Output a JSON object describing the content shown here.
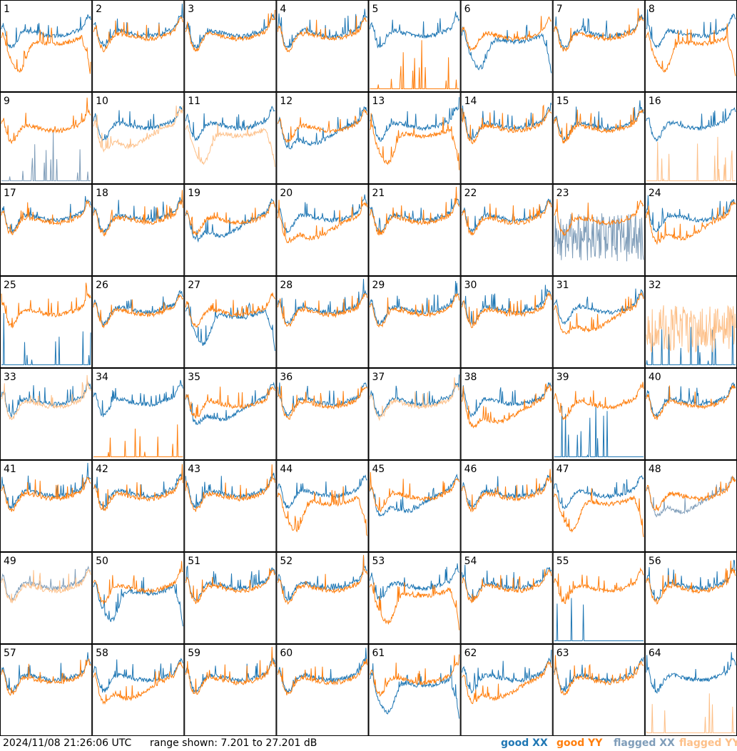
{
  "timestamp": "2024/11/08 21:26:06 UTC",
  "range_text": "range shown: 7.201 to 27.201 dB",
  "legend": {
    "good_xx": "good XX",
    "good_yy": "good YY",
    "flagged_xx": "flagged XX",
    "flagged_yy": "flagged YY"
  },
  "colors": {
    "good_xx": "#1f77b4",
    "good_yy": "#ff7f0e",
    "flagged_xx": "#7f9db9",
    "flagged_yy": "#fdc089"
  },
  "chart_data": {
    "type": "line",
    "grid": "8x8 small multiples",
    "ylim": [
      7.201,
      27.201
    ],
    "y_unit": "dB",
    "series_kinds": [
      "good XX",
      "good YY",
      "flagged XX",
      "flagged YY"
    ],
    "panels": [
      {
        "id": "1",
        "xx": "good",
        "yy": "good",
        "shape_xx": "normal",
        "shape_yy": "rolloff"
      },
      {
        "id": "2",
        "xx": "good",
        "yy": "good",
        "shape_xx": "normal",
        "shape_yy": "normal"
      },
      {
        "id": "3",
        "xx": "good",
        "yy": "good",
        "shape_xx": "normal",
        "shape_yy": "normal"
      },
      {
        "id": "4",
        "xx": "good",
        "yy": "good",
        "shape_xx": "normal",
        "shape_yy": "normal"
      },
      {
        "id": "5",
        "xx": "good",
        "yy": "good",
        "shape_xx": "normal",
        "shape_yy": "spikes"
      },
      {
        "id": "6",
        "xx": "good",
        "yy": "good",
        "shape_xx": "rolloff",
        "shape_yy": "normal"
      },
      {
        "id": "7",
        "xx": "good",
        "yy": "good",
        "shape_xx": "normal",
        "shape_yy": "normal"
      },
      {
        "id": "8",
        "xx": "good",
        "yy": "good",
        "shape_xx": "normal",
        "shape_yy": "rolloff"
      },
      {
        "id": "9",
        "xx": "flagged",
        "yy": "good",
        "shape_xx": "spikes",
        "shape_yy": "normal"
      },
      {
        "id": "10",
        "xx": "good",
        "yy": "flagged",
        "shape_xx": "normal",
        "shape_yy": "low"
      },
      {
        "id": "11",
        "xx": "good",
        "yy": "flagged",
        "shape_xx": "normal",
        "shape_yy": "rolloff"
      },
      {
        "id": "12",
        "xx": "good",
        "yy": "good",
        "shape_xx": "low",
        "shape_yy": "normal"
      },
      {
        "id": "13",
        "xx": "good",
        "yy": "good",
        "shape_xx": "normal",
        "shape_yy": "rolloff"
      },
      {
        "id": "14",
        "xx": "good",
        "yy": "good",
        "shape_xx": "normal",
        "shape_yy": "normal"
      },
      {
        "id": "15",
        "xx": "good",
        "yy": "good",
        "shape_xx": "normal",
        "shape_yy": "normal"
      },
      {
        "id": "16",
        "xx": "good",
        "yy": "flagged",
        "shape_xx": "normal",
        "shape_yy": "spikes"
      },
      {
        "id": "17",
        "xx": "good",
        "yy": "good",
        "shape_xx": "normal",
        "shape_yy": "normal"
      },
      {
        "id": "18",
        "xx": "good",
        "yy": "good",
        "shape_xx": "normal",
        "shape_yy": "normal"
      },
      {
        "id": "19",
        "xx": "good",
        "yy": "good",
        "shape_xx": "low",
        "shape_yy": "normal"
      },
      {
        "id": "20",
        "xx": "good",
        "yy": "good",
        "shape_xx": "normal",
        "shape_yy": "low"
      },
      {
        "id": "21",
        "xx": "good",
        "yy": "good",
        "shape_xx": "normal",
        "shape_yy": "normal"
      },
      {
        "id": "22",
        "xx": "good",
        "yy": "good",
        "shape_xx": "normal",
        "shape_yy": "normal"
      },
      {
        "id": "23",
        "xx": "flagged",
        "yy": "good",
        "shape_xx": "noise",
        "shape_yy": "normal"
      },
      {
        "id": "24",
        "xx": "good",
        "yy": "good",
        "shape_xx": "normal",
        "shape_yy": "low"
      },
      {
        "id": "25",
        "xx": "good",
        "yy": "good",
        "shape_xx": "spikes",
        "shape_yy": "normal"
      },
      {
        "id": "26",
        "xx": "good",
        "yy": "good",
        "shape_xx": "normal",
        "shape_yy": "normal"
      },
      {
        "id": "27",
        "xx": "good",
        "yy": "good",
        "shape_xx": "rolloff",
        "shape_yy": "normal"
      },
      {
        "id": "28",
        "xx": "good",
        "yy": "good",
        "shape_xx": "normal",
        "shape_yy": "normal"
      },
      {
        "id": "29",
        "xx": "good",
        "yy": "good",
        "shape_xx": "normal",
        "shape_yy": "normal"
      },
      {
        "id": "30",
        "xx": "good",
        "yy": "good",
        "shape_xx": "normal",
        "shape_yy": "normal"
      },
      {
        "id": "31",
        "xx": "good",
        "yy": "good",
        "shape_xx": "normal",
        "shape_yy": "low"
      },
      {
        "id": "32",
        "xx": "good",
        "yy": "flagged",
        "shape_xx": "spikes",
        "shape_yy": "noise"
      },
      {
        "id": "33",
        "xx": "good",
        "yy": "flagged",
        "shape_xx": "normal",
        "shape_yy": "normal"
      },
      {
        "id": "34",
        "xx": "good",
        "yy": "good",
        "shape_xx": "normal",
        "shape_yy": "spikes"
      },
      {
        "id": "35",
        "xx": "good",
        "yy": "good",
        "shape_xx": "low",
        "shape_yy": "normal"
      },
      {
        "id": "36",
        "xx": "good",
        "yy": "good",
        "shape_xx": "normal",
        "shape_yy": "normal"
      },
      {
        "id": "37",
        "xx": "good",
        "yy": "flagged",
        "shape_xx": "normal",
        "shape_yy": "normal"
      },
      {
        "id": "38",
        "xx": "good",
        "yy": "good",
        "shape_xx": "normal",
        "shape_yy": "low"
      },
      {
        "id": "39",
        "xx": "good",
        "yy": "good",
        "shape_xx": "spikes",
        "shape_yy": "normal"
      },
      {
        "id": "40",
        "xx": "good",
        "yy": "good",
        "shape_xx": "normal",
        "shape_yy": "normal"
      },
      {
        "id": "41",
        "xx": "good",
        "yy": "good",
        "shape_xx": "normal",
        "shape_yy": "normal"
      },
      {
        "id": "42",
        "xx": "good",
        "yy": "good",
        "shape_xx": "normal",
        "shape_yy": "normal"
      },
      {
        "id": "43",
        "xx": "good",
        "yy": "good",
        "shape_xx": "normal",
        "shape_yy": "normal"
      },
      {
        "id": "44",
        "xx": "good",
        "yy": "good",
        "shape_xx": "normal",
        "shape_yy": "rolloff"
      },
      {
        "id": "45",
        "xx": "good",
        "yy": "good",
        "shape_xx": "low",
        "shape_yy": "normal"
      },
      {
        "id": "46",
        "xx": "good",
        "yy": "good",
        "shape_xx": "normal",
        "shape_yy": "normal"
      },
      {
        "id": "47",
        "xx": "good",
        "yy": "good",
        "shape_xx": "normal",
        "shape_yy": "rolloff"
      },
      {
        "id": "48",
        "xx": "flagged",
        "yy": "good",
        "shape_xx": "low",
        "shape_yy": "normal"
      },
      {
        "id": "49",
        "xx": "flagged",
        "yy": "flagged",
        "shape_xx": "normal",
        "shape_yy": "normal"
      },
      {
        "id": "50",
        "xx": "good",
        "yy": "good",
        "shape_xx": "rolloff",
        "shape_yy": "normal"
      },
      {
        "id": "51",
        "xx": "good",
        "yy": "good",
        "shape_xx": "normal",
        "shape_yy": "normal"
      },
      {
        "id": "52",
        "xx": "good",
        "yy": "good",
        "shape_xx": "normal",
        "shape_yy": "normal"
      },
      {
        "id": "53",
        "xx": "good",
        "yy": "good",
        "shape_xx": "normal",
        "shape_yy": "rolloff"
      },
      {
        "id": "54",
        "xx": "good",
        "yy": "good",
        "shape_xx": "normal",
        "shape_yy": "normal"
      },
      {
        "id": "55",
        "xx": "good",
        "yy": "good",
        "shape_xx": "spikes",
        "shape_yy": "normal"
      },
      {
        "id": "56",
        "xx": "good",
        "yy": "good",
        "shape_xx": "normal",
        "shape_yy": "normal"
      },
      {
        "id": "57",
        "xx": "good",
        "yy": "good",
        "shape_xx": "normal",
        "shape_yy": "normal"
      },
      {
        "id": "58",
        "xx": "good",
        "yy": "good",
        "shape_xx": "normal",
        "shape_yy": "low"
      },
      {
        "id": "59",
        "xx": "good",
        "yy": "good",
        "shape_xx": "normal",
        "shape_yy": "normal"
      },
      {
        "id": "60",
        "xx": "good",
        "yy": "good",
        "shape_xx": "normal",
        "shape_yy": "normal"
      },
      {
        "id": "61",
        "xx": "good",
        "yy": "good",
        "shape_xx": "rolloff",
        "shape_yy": "normal"
      },
      {
        "id": "62",
        "xx": "good",
        "yy": "good",
        "shape_xx": "normal",
        "shape_yy": "low"
      },
      {
        "id": "63",
        "xx": "good",
        "yy": "good",
        "shape_xx": "normal",
        "shape_yy": "normal"
      },
      {
        "id": "64",
        "xx": "good",
        "yy": "flagged",
        "shape_xx": "normal",
        "shape_yy": "spikes"
      }
    ]
  }
}
